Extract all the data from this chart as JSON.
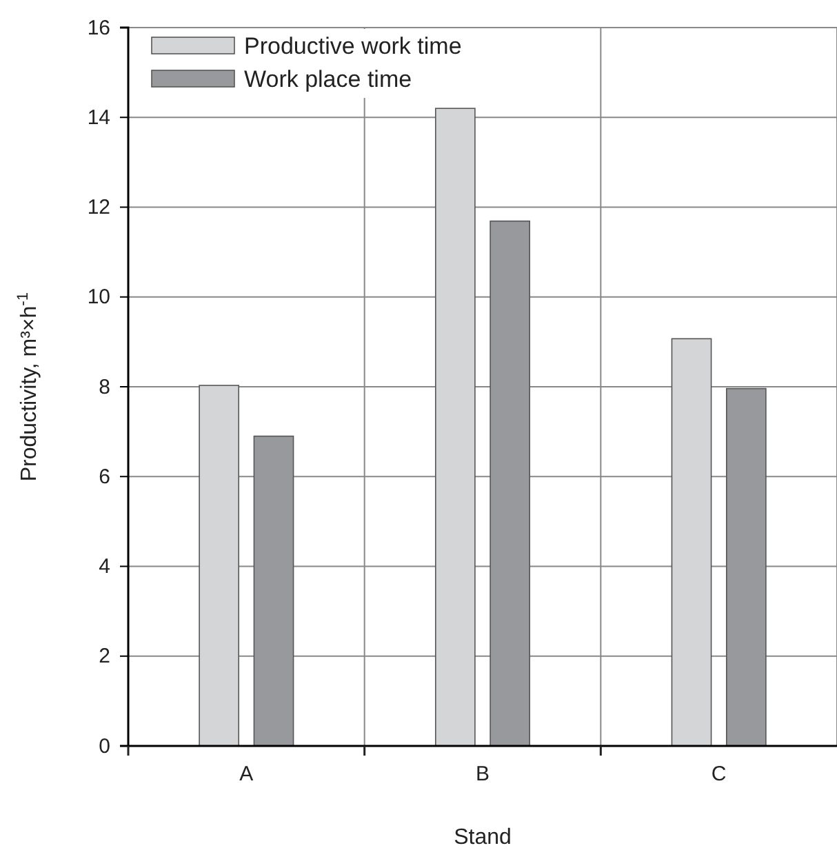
{
  "chart_data": {
    "type": "bar",
    "xlabel": "Stand",
    "ylabel": "Productivity, m³×h$^{-1}$",
    "categories": [
      "A",
      "B",
      "C"
    ],
    "series": [
      {
        "name": "Productive work time",
        "color": "#d4d5d7",
        "values": [
          8.03,
          14.2,
          9.07
        ]
      },
      {
        "name": "Work place time",
        "color": "#98999d",
        "values": [
          6.9,
          11.69,
          7.96
        ]
      }
    ],
    "ylim": [
      0,
      16
    ],
    "yticks": [
      0,
      2,
      4,
      6,
      8,
      10,
      12,
      14,
      16
    ],
    "grid": true,
    "legend": "top left"
  }
}
